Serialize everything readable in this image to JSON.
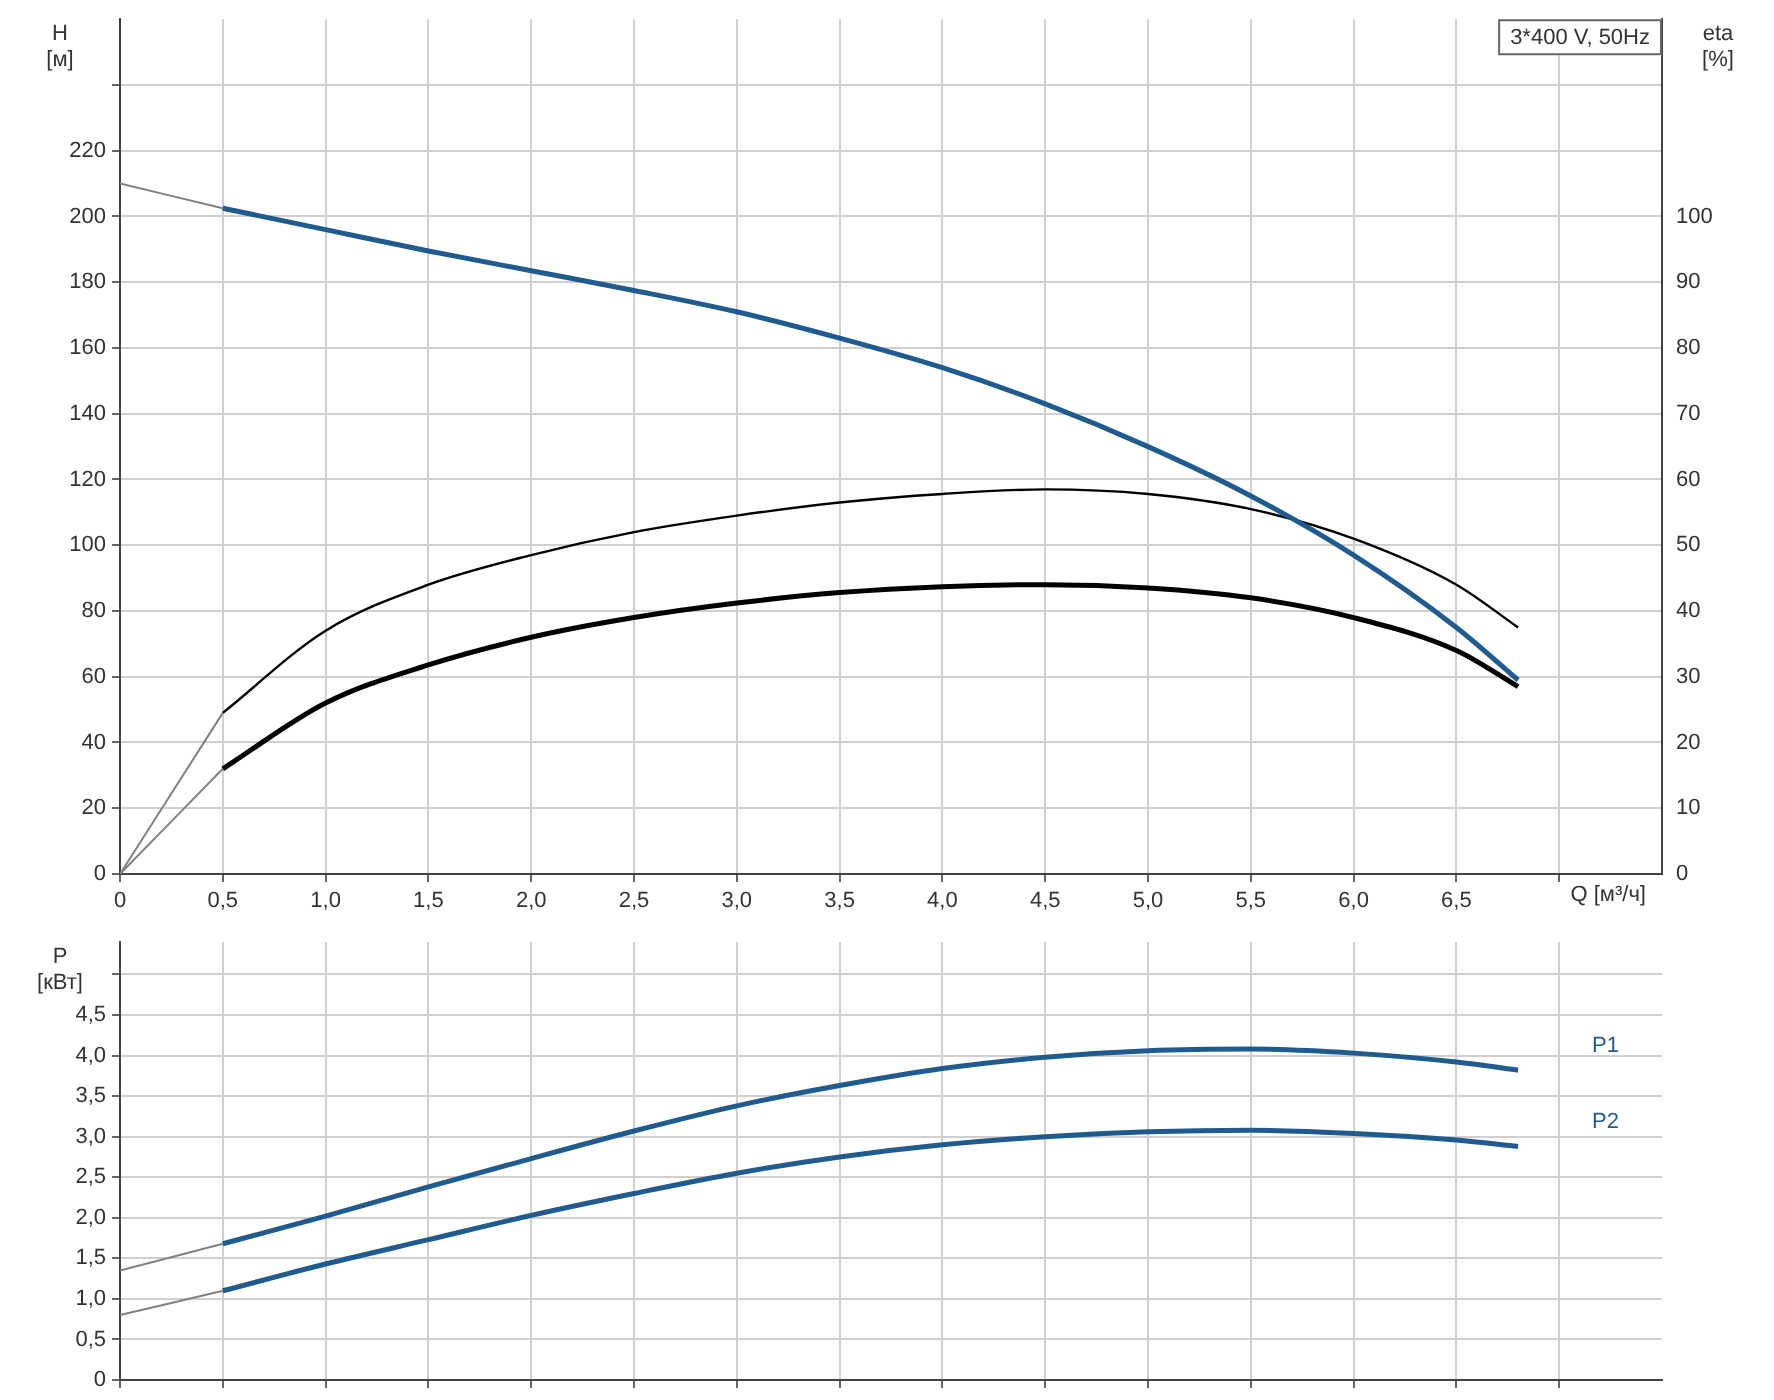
{
  "chart_data": [
    {
      "type": "line",
      "xlabel": "Q [м³/ч]",
      "ylabel": "H [м]",
      "y2label": "eta [%]",
      "annotations": [
        "3*400 V, 50Hz"
      ],
      "legend": false,
      "grid": true,
      "marker": "none",
      "line_style": "solid",
      "tick_labels": [
        "x",
        "y",
        "y2"
      ],
      "xlim": [
        0,
        7.5
      ],
      "xticks": [
        0,
        {
          "value": 0.5,
          "label": "0,5"
        },
        {
          "value": 1,
          "label": "1,0"
        },
        {
          "value": 1.5,
          "label": "1,5"
        },
        {
          "value": 2,
          "label": "2,0"
        },
        {
          "value": 2.5,
          "label": "2,5"
        },
        {
          "value": 3,
          "label": "3,0"
        },
        {
          "value": 3.5,
          "label": "3,5"
        },
        {
          "value": 4,
          "label": "4,0"
        },
        {
          "value": 4.5,
          "label": "4,5"
        },
        {
          "value": 5,
          "label": "5,0"
        },
        {
          "value": 5.5,
          "label": "5,5"
        },
        {
          "value": 6,
          "label": "6,0"
        },
        {
          "value": 6.5,
          "label": "6,5"
        },
        {
          "value": 7,
          "label": null
        }
      ],
      "ylim": [
        0,
        260
      ],
      "yticks": [
        0,
        20,
        40,
        60,
        80,
        100,
        120,
        140,
        160,
        180,
        200,
        220,
        {
          "value": 240,
          "label": null
        }
      ],
      "y2lim": [
        0,
        130
      ],
      "y2ticks": [
        0,
        10,
        20,
        30,
        40,
        50,
        60,
        70,
        80,
        90,
        100
      ],
      "series": [
        {
          "color": "#808080",
          "axis": "y",
          "x": [
            0,
            0.5
          ],
          "values": [
            210,
            202.5
          ]
        },
        {
          "color": "#1f5b8e",
          "axis": "y",
          "x": [
            0.5,
            1,
            1.5,
            2,
            2.5,
            3,
            3.5,
            4,
            4.5,
            5,
            5.5,
            6,
            6.5,
            6.8
          ],
          "values": [
            202.5,
            196,
            189.5,
            183.5,
            177.5,
            171,
            163,
            154,
            143,
            130,
            115,
            97,
            75,
            59
          ]
        },
        {
          "color": "#808080",
          "axis": "y2",
          "x": [
            0,
            0.5
          ],
          "values": [
            0,
            24.5
          ]
        },
        {
          "color": "#000000",
          "axis": "y2",
          "x": [
            0.5,
            1,
            1.5,
            2,
            2.5,
            3,
            3.5,
            4,
            4.5,
            5,
            5.5,
            6,
            6.5,
            6.8
          ],
          "values": [
            24.5,
            37,
            44,
            48.5,
            52,
            54.5,
            56.5,
            57.8,
            58.5,
            57.8,
            55.5,
            51,
            44,
            37.5
          ]
        },
        {
          "color": "#808080",
          "axis": "y2",
          "x": [
            0,
            0.5
          ],
          "values": [
            0,
            16
          ]
        },
        {
          "color": "#000000",
          "axis": "y2",
          "x": [
            0.5,
            1,
            1.5,
            2,
            2.5,
            3,
            3.5,
            4,
            4.5,
            5,
            5.5,
            6,
            6.5,
            6.8
          ],
          "values": [
            16,
            26,
            31.8,
            36,
            39,
            41.2,
            42.8,
            43.7,
            44,
            43.5,
            42,
            39,
            34,
            28.5
          ]
        }
      ]
    },
    {
      "type": "line",
      "ylabel": "P [кВт]",
      "legend": false,
      "grid": true,
      "marker": "none",
      "line_style": "solid",
      "tick_labels": "y",
      "xlim": [
        0,
        7.5
      ],
      "xticks": [
        0,
        0.5,
        1,
        1.5,
        2,
        2.5,
        3,
        3.5,
        4,
        4.5,
        5,
        5.5,
        6,
        6.5,
        7
      ],
      "ylim": [
        0,
        5.4
      ],
      "yticks": [
        0,
        {
          "value": 0.5,
          "label": "0,5"
        },
        {
          "value": 1,
          "label": "1,0"
        },
        {
          "value": 1.5,
          "label": "1,5"
        },
        {
          "value": 2,
          "label": "2,0"
        },
        {
          "value": 2.5,
          "label": "2,5"
        },
        {
          "value": 3,
          "label": "3,0"
        },
        {
          "value": 3.5,
          "label": "3,5"
        },
        {
          "value": 4,
          "label": "4,0"
        },
        {
          "value": 4.5,
          "label": "4,5"
        },
        {
          "value": 5,
          "label": null
        }
      ],
      "series": [
        {
          "color": "#808080",
          "x": [
            0,
            0.5
          ],
          "values": [
            1.35,
            1.68
          ]
        },
        {
          "name": "P1",
          "color": "#1f5b8e",
          "x": [
            0.5,
            1,
            1.5,
            2,
            2.5,
            3,
            3.5,
            4,
            4.5,
            5,
            5.5,
            6,
            6.5,
            6.8
          ],
          "values": [
            1.68,
            2.02,
            2.38,
            2.73,
            3.07,
            3.38,
            3.63,
            3.84,
            3.98,
            4.06,
            4.08,
            4.03,
            3.92,
            3.82
          ]
        },
        {
          "color": "#808080",
          "x": [
            0,
            0.5
          ],
          "values": [
            0.8,
            1.1
          ]
        },
        {
          "name": "P2",
          "color": "#1f5b8e",
          "x": [
            0.5,
            1,
            1.5,
            2,
            2.5,
            3,
            3.5,
            4,
            4.5,
            5,
            5.5,
            6,
            6.5,
            6.8
          ],
          "values": [
            1.1,
            1.43,
            1.73,
            2.03,
            2.3,
            2.55,
            2.75,
            2.9,
            3,
            3.06,
            3.08,
            3.04,
            2.96,
            2.88
          ]
        }
      ]
    }
  ]
}
